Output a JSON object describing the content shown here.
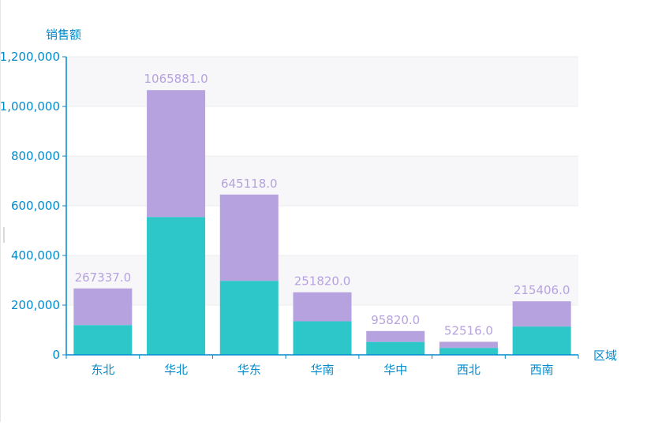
{
  "chart_data": {
    "type": "bar",
    "stacked": true,
    "categories": [
      "东北",
      "华北",
      "华东",
      "华南",
      "华中",
      "西北",
      "西南"
    ],
    "series": [
      {
        "values": [
          120000,
          555000,
          298000,
          135000,
          52000,
          28000,
          114000
        ]
      },
      {
        "values": [
          147337,
          510881,
          347118,
          116820,
          43820,
          24516,
          101406
        ]
      }
    ],
    "totals": [
      267337.0,
      1065881.0,
      645118.0,
      251820.0,
      95820.0,
      52516.0,
      215406.0
    ],
    "total_labels": [
      "267337.0",
      "1065881.0",
      "645118.0",
      "251820.0",
      "95820.0",
      "52516.0",
      "215406.0"
    ],
    "xlabel": "区域",
    "ylabel": "销售额",
    "ylim": [
      0,
      1200000
    ],
    "yticks": [
      0,
      200000,
      400000,
      600000,
      800000,
      1000000,
      1200000
    ],
    "ytick_labels": [
      "0",
      "200,000",
      "400,000",
      "600,000",
      "800,000",
      "1,000,000",
      "1,200,000"
    ],
    "grid": true,
    "legend": "none",
    "colors": {
      "series": [
        "#2ec7c9",
        "#b6a2de"
      ],
      "axis": "#008acd",
      "grid": "#eeeeee",
      "band": "#f7f7f9"
    }
  }
}
